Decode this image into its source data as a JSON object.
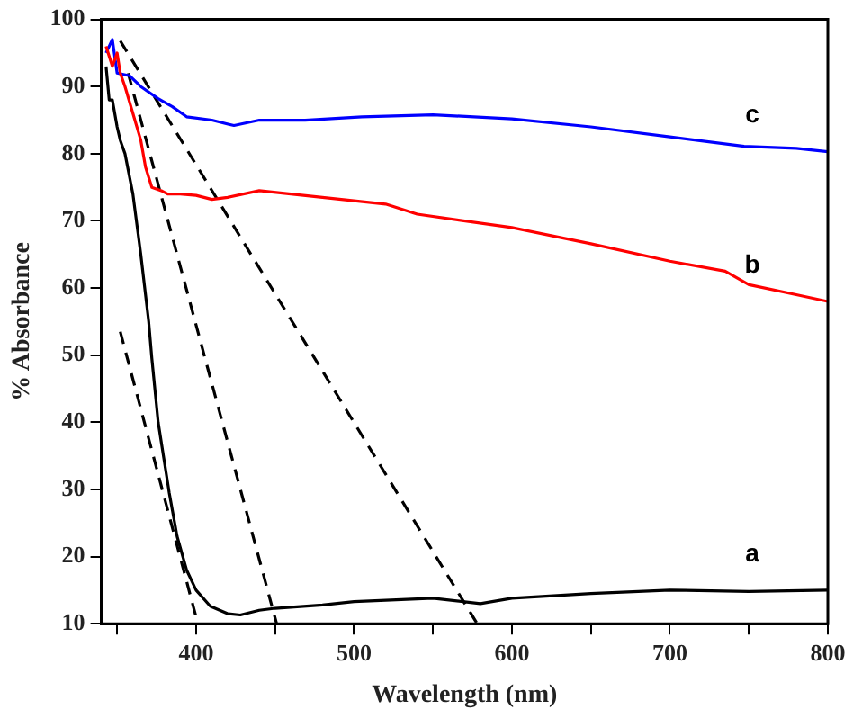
{
  "chart_data": {
    "type": "line",
    "xlabel": "Wavelength (nm)",
    "ylabel": "% Absorbance",
    "xlim": [
      340,
      800
    ],
    "ylim": [
      10,
      100
    ],
    "xticks": [
      {
        "value": 350,
        "label": null
      },
      400,
      {
        "value": 450,
        "label": null
      },
      500,
      {
        "value": 550,
        "label": null
      },
      600,
      {
        "value": 650,
        "label": null
      },
      700,
      {
        "value": 750,
        "label": null
      },
      800
    ],
    "yticks": [
      10,
      20,
      30,
      40,
      50,
      60,
      70,
      80,
      90,
      100
    ],
    "grid": false,
    "legend": false,
    "marker": "none",
    "series": [
      {
        "name": "a",
        "color": "#000000",
        "x": [
          343,
          345,
          347,
          350,
          352,
          355,
          360,
          365,
          370,
          372,
          376,
          380,
          383,
          388,
          394,
          400,
          409,
          420,
          428,
          440,
          450,
          480,
          500,
          550,
          580,
          600,
          650,
          700,
          750,
          800
        ],
        "values": [
          93,
          88,
          88,
          84,
          82,
          80,
          74,
          65,
          55,
          49.5,
          40,
          34,
          29.5,
          23,
          18,
          15,
          12.6,
          11.5,
          11.3,
          12,
          12.3,
          12.8,
          13.3,
          13.8,
          13,
          13.8,
          14.5,
          15,
          14.8,
          15
        ]
      },
      {
        "name": "b",
        "color": "#ff0000",
        "x": [
          343,
          347,
          350,
          352,
          355,
          360,
          365,
          368,
          372,
          378,
          382,
          390,
          400,
          410,
          420,
          440,
          460,
          480,
          500,
          520,
          540,
          600,
          650,
          700,
          735,
          750,
          780,
          800
        ],
        "values": [
          96,
          93,
          95,
          92,
          90,
          86,
          82,
          78,
          75,
          74.5,
          74,
          74,
          73.8,
          73.2,
          73.5,
          74.5,
          74,
          73.5,
          73,
          72.5,
          71,
          69,
          66.6,
          64,
          62.5,
          60.5,
          59,
          58
        ]
      },
      {
        "name": "c",
        "color": "#0000ff",
        "x": [
          343,
          347,
          350,
          358,
          365,
          376,
          385,
          394,
          410,
          424,
          440,
          469,
          505,
          550,
          600,
          650,
          700,
          747,
          780,
          800
        ],
        "values": [
          95,
          97,
          92,
          91.6,
          90,
          88.2,
          87,
          85.5,
          85,
          84.2,
          85,
          85,
          85.5,
          85.8,
          85.2,
          84,
          82.5,
          81.1,
          80.8,
          80.3
        ]
      },
      {
        "color": "#000000",
        "line_style": "dashed",
        "x": [
          352,
          400
        ],
        "values": [
          53.5,
          11
        ]
      },
      {
        "color": "#000000",
        "line_style": "dashed",
        "x": [
          357,
          451
        ],
        "values": [
          92,
          10
        ]
      },
      {
        "color": "#000000",
        "line_style": "dashed",
        "x": [
          352,
          578
        ],
        "values": [
          96.8,
          10
        ]
      }
    ]
  }
}
